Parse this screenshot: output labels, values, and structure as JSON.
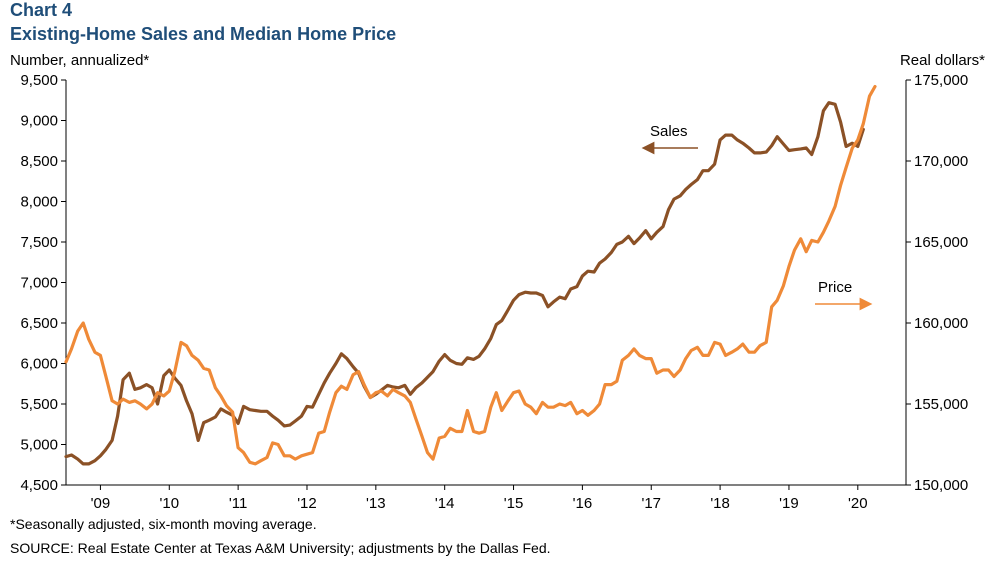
{
  "chart_data": {
    "type": "line",
    "title": "Chart 4",
    "subtitle": "Existing-Home Sales and Median Home Price",
    "ylabel_left": "Number, annualized*",
    "ylabel_right": "Real dollars*",
    "left_axis": {
      "min": 4500,
      "max": 9500,
      "step": 500,
      "ticks": [
        "4,500",
        "5,000",
        "5,500",
        "6,000",
        "6,500",
        "7,000",
        "7,500",
        "8,000",
        "8,500",
        "9,000",
        "9,500"
      ]
    },
    "right_axis": {
      "min": 150000,
      "max": 175000,
      "step": 5000,
      "ticks": [
        "150,000",
        "155,000",
        "160,000",
        "165,000",
        "170,000",
        "175,000"
      ]
    },
    "x_ticks": [
      "'09",
      "'10",
      "'11",
      "'12",
      "'13",
      "'14",
      "'15",
      "'16",
      "'17",
      "'18",
      "'19",
      "'20"
    ],
    "x_range": [
      2008.5,
      2020.7
    ],
    "grid": false,
    "series": [
      {
        "name": "Sales",
        "axis": "left",
        "color": "#8b5126",
        "points": [
          [
            2008.5,
            4850
          ],
          [
            2008.58,
            4870
          ],
          [
            2008.67,
            4820
          ],
          [
            2008.75,
            4760
          ],
          [
            2008.83,
            4760
          ],
          [
            2008.92,
            4800
          ],
          [
            2009.0,
            4860
          ],
          [
            2009.08,
            4940
          ],
          [
            2009.17,
            5050
          ],
          [
            2009.25,
            5350
          ],
          [
            2009.33,
            5800
          ],
          [
            2009.42,
            5880
          ],
          [
            2009.5,
            5680
          ],
          [
            2009.58,
            5700
          ],
          [
            2009.67,
            5740
          ],
          [
            2009.75,
            5700
          ],
          [
            2009.83,
            5500
          ],
          [
            2009.92,
            5850
          ],
          [
            2010.0,
            5920
          ],
          [
            2010.08,
            5820
          ],
          [
            2010.17,
            5730
          ],
          [
            2010.25,
            5540
          ],
          [
            2010.33,
            5380
          ],
          [
            2010.42,
            5050
          ],
          [
            2010.5,
            5270
          ],
          [
            2010.58,
            5300
          ],
          [
            2010.67,
            5340
          ],
          [
            2010.75,
            5440
          ],
          [
            2010.83,
            5400
          ],
          [
            2010.92,
            5360
          ],
          [
            2011.0,
            5260
          ],
          [
            2011.08,
            5470
          ],
          [
            2011.17,
            5430
          ],
          [
            2011.25,
            5420
          ],
          [
            2011.33,
            5410
          ],
          [
            2011.42,
            5410
          ],
          [
            2011.5,
            5350
          ],
          [
            2011.58,
            5300
          ],
          [
            2011.67,
            5230
          ],
          [
            2011.75,
            5240
          ],
          [
            2011.83,
            5290
          ],
          [
            2011.92,
            5350
          ],
          [
            2012.0,
            5470
          ],
          [
            2012.08,
            5460
          ],
          [
            2012.17,
            5620
          ],
          [
            2012.25,
            5760
          ],
          [
            2012.33,
            5880
          ],
          [
            2012.42,
            6000
          ],
          [
            2012.5,
            6120
          ],
          [
            2012.58,
            6060
          ],
          [
            2012.67,
            5960
          ],
          [
            2012.75,
            5880
          ],
          [
            2012.83,
            5720
          ],
          [
            2012.92,
            5580
          ],
          [
            2013.0,
            5620
          ],
          [
            2013.08,
            5670
          ],
          [
            2013.17,
            5730
          ],
          [
            2013.25,
            5710
          ],
          [
            2013.33,
            5700
          ],
          [
            2013.42,
            5730
          ],
          [
            2013.5,
            5620
          ],
          [
            2013.58,
            5700
          ],
          [
            2013.67,
            5760
          ],
          [
            2013.75,
            5830
          ],
          [
            2013.83,
            5900
          ],
          [
            2013.92,
            6030
          ],
          [
            2014.0,
            6110
          ],
          [
            2014.08,
            6040
          ],
          [
            2014.17,
            6000
          ],
          [
            2014.25,
            5990
          ],
          [
            2014.33,
            6070
          ],
          [
            2014.42,
            6050
          ],
          [
            2014.5,
            6090
          ],
          [
            2014.58,
            6180
          ],
          [
            2014.67,
            6310
          ],
          [
            2014.75,
            6480
          ],
          [
            2014.83,
            6530
          ],
          [
            2014.92,
            6660
          ],
          [
            2015.0,
            6780
          ],
          [
            2015.08,
            6850
          ],
          [
            2015.17,
            6880
          ],
          [
            2015.25,
            6870
          ],
          [
            2015.33,
            6870
          ],
          [
            2015.42,
            6840
          ],
          [
            2015.5,
            6700
          ],
          [
            2015.58,
            6760
          ],
          [
            2015.67,
            6820
          ],
          [
            2015.75,
            6800
          ],
          [
            2015.83,
            6920
          ],
          [
            2015.92,
            6950
          ],
          [
            2016.0,
            7080
          ],
          [
            2016.08,
            7140
          ],
          [
            2016.17,
            7130
          ],
          [
            2016.25,
            7240
          ],
          [
            2016.33,
            7290
          ],
          [
            2016.42,
            7370
          ],
          [
            2016.5,
            7470
          ],
          [
            2016.58,
            7500
          ],
          [
            2016.67,
            7570
          ],
          [
            2016.75,
            7480
          ],
          [
            2016.83,
            7550
          ],
          [
            2016.92,
            7640
          ],
          [
            2017.0,
            7540
          ],
          [
            2017.08,
            7620
          ],
          [
            2017.17,
            7690
          ],
          [
            2017.25,
            7900
          ],
          [
            2017.33,
            8030
          ],
          [
            2017.42,
            8070
          ],
          [
            2017.5,
            8150
          ],
          [
            2017.58,
            8210
          ],
          [
            2017.67,
            8270
          ],
          [
            2017.75,
            8380
          ],
          [
            2017.83,
            8380
          ],
          [
            2017.92,
            8460
          ],
          [
            2018.0,
            8760
          ],
          [
            2018.08,
            8820
          ],
          [
            2018.17,
            8820
          ],
          [
            2018.25,
            8760
          ],
          [
            2018.33,
            8720
          ],
          [
            2018.42,
            8660
          ],
          [
            2018.5,
            8600
          ],
          [
            2018.58,
            8600
          ],
          [
            2018.67,
            8610
          ],
          [
            2018.75,
            8690
          ],
          [
            2018.83,
            8800
          ],
          [
            2018.92,
            8710
          ],
          [
            2019.0,
            8630
          ],
          [
            2019.08,
            8640
          ],
          [
            2019.17,
            8650
          ],
          [
            2019.25,
            8660
          ],
          [
            2019.33,
            8580
          ],
          [
            2019.42,
            8800
          ],
          [
            2019.5,
            9120
          ],
          [
            2019.58,
            9220
          ],
          [
            2019.67,
            9200
          ],
          [
            2019.75,
            8980
          ],
          [
            2019.83,
            8680
          ],
          [
            2019.92,
            8720
          ],
          [
            2020.0,
            8680
          ],
          [
            2020.08,
            8890
          ]
        ]
      },
      {
        "name": "Price",
        "axis": "right",
        "color": "#ef8a38",
        "points": [
          [
            2008.5,
            157600
          ],
          [
            2008.58,
            158400
          ],
          [
            2008.67,
            159500
          ],
          [
            2008.75,
            160000
          ],
          [
            2008.83,
            159000
          ],
          [
            2008.92,
            158200
          ],
          [
            2009.0,
            158000
          ],
          [
            2009.08,
            156700
          ],
          [
            2009.17,
            155200
          ],
          [
            2009.25,
            155000
          ],
          [
            2009.33,
            155300
          ],
          [
            2009.42,
            155100
          ],
          [
            2009.5,
            155200
          ],
          [
            2009.58,
            155000
          ],
          [
            2009.67,
            154700
          ],
          [
            2009.75,
            155000
          ],
          [
            2009.83,
            155700
          ],
          [
            2009.92,
            155500
          ],
          [
            2010.0,
            155800
          ],
          [
            2010.08,
            157000
          ],
          [
            2010.17,
            158800
          ],
          [
            2010.25,
            158600
          ],
          [
            2010.33,
            158000
          ],
          [
            2010.42,
            157700
          ],
          [
            2010.5,
            157200
          ],
          [
            2010.58,
            157100
          ],
          [
            2010.67,
            156000
          ],
          [
            2010.75,
            155500
          ],
          [
            2010.83,
            154900
          ],
          [
            2010.92,
            154500
          ],
          [
            2011.0,
            152300
          ],
          [
            2011.08,
            152000
          ],
          [
            2011.17,
            151400
          ],
          [
            2011.25,
            151300
          ],
          [
            2011.33,
            151500
          ],
          [
            2011.42,
            151700
          ],
          [
            2011.5,
            152600
          ],
          [
            2011.58,
            152500
          ],
          [
            2011.67,
            151800
          ],
          [
            2011.75,
            151800
          ],
          [
            2011.83,
            151600
          ],
          [
            2011.92,
            151800
          ],
          [
            2012.0,
            151900
          ],
          [
            2012.08,
            152000
          ],
          [
            2012.17,
            153200
          ],
          [
            2012.25,
            153300
          ],
          [
            2012.33,
            154500
          ],
          [
            2012.42,
            155700
          ],
          [
            2012.5,
            156100
          ],
          [
            2012.58,
            155900
          ],
          [
            2012.67,
            156800
          ],
          [
            2012.75,
            157000
          ],
          [
            2012.83,
            156200
          ],
          [
            2012.92,
            155400
          ],
          [
            2013.0,
            155700
          ],
          [
            2013.08,
            155800
          ],
          [
            2013.17,
            155500
          ],
          [
            2013.25,
            155900
          ],
          [
            2013.33,
            155700
          ],
          [
            2013.42,
            155500
          ],
          [
            2013.5,
            155100
          ],
          [
            2013.58,
            154100
          ],
          [
            2013.67,
            153000
          ],
          [
            2013.75,
            152000
          ],
          [
            2013.83,
            151600
          ],
          [
            2013.92,
            152900
          ],
          [
            2014.0,
            153000
          ],
          [
            2014.08,
            153500
          ],
          [
            2014.17,
            153300
          ],
          [
            2014.25,
            153300
          ],
          [
            2014.33,
            154600
          ],
          [
            2014.42,
            153300
          ],
          [
            2014.5,
            153200
          ],
          [
            2014.58,
            153300
          ],
          [
            2014.67,
            154800
          ],
          [
            2014.75,
            155700
          ],
          [
            2014.83,
            154600
          ],
          [
            2014.92,
            155200
          ],
          [
            2015.0,
            155700
          ],
          [
            2015.08,
            155800
          ],
          [
            2015.17,
            155000
          ],
          [
            2015.25,
            154800
          ],
          [
            2015.33,
            154400
          ],
          [
            2015.42,
            155100
          ],
          [
            2015.5,
            154800
          ],
          [
            2015.58,
            154800
          ],
          [
            2015.67,
            155000
          ],
          [
            2015.75,
            154900
          ],
          [
            2015.83,
            155100
          ],
          [
            2015.92,
            154400
          ],
          [
            2016.0,
            154600
          ],
          [
            2016.08,
            154300
          ],
          [
            2016.17,
            154600
          ],
          [
            2016.25,
            155000
          ],
          [
            2016.33,
            156200
          ],
          [
            2016.42,
            156200
          ],
          [
            2016.5,
            156400
          ],
          [
            2016.58,
            157700
          ],
          [
            2016.67,
            158000
          ],
          [
            2016.75,
            158400
          ],
          [
            2016.83,
            158000
          ],
          [
            2016.92,
            157800
          ],
          [
            2017.0,
            157800
          ],
          [
            2017.08,
            156900
          ],
          [
            2017.17,
            157100
          ],
          [
            2017.25,
            157100
          ],
          [
            2017.33,
            156700
          ],
          [
            2017.42,
            157100
          ],
          [
            2017.5,
            157800
          ],
          [
            2017.58,
            158300
          ],
          [
            2017.67,
            158500
          ],
          [
            2017.75,
            158000
          ],
          [
            2017.83,
            158000
          ],
          [
            2017.92,
            158800
          ],
          [
            2018.0,
            158700
          ],
          [
            2018.08,
            158000
          ],
          [
            2018.17,
            158200
          ],
          [
            2018.25,
            158400
          ],
          [
            2018.33,
            158700
          ],
          [
            2018.42,
            158200
          ],
          [
            2018.5,
            158200
          ],
          [
            2018.58,
            158600
          ],
          [
            2018.67,
            158800
          ],
          [
            2018.75,
            161000
          ],
          [
            2018.83,
            161400
          ],
          [
            2018.92,
            162300
          ],
          [
            2019.0,
            163500
          ],
          [
            2019.08,
            164500
          ],
          [
            2019.17,
            165200
          ],
          [
            2019.25,
            164400
          ],
          [
            2019.33,
            165100
          ],
          [
            2019.42,
            165000
          ],
          [
            2019.5,
            165600
          ],
          [
            2019.58,
            166300
          ],
          [
            2019.67,
            167200
          ],
          [
            2019.75,
            168500
          ],
          [
            2019.83,
            169600
          ],
          [
            2019.92,
            170800
          ],
          [
            2020.0,
            171300
          ],
          [
            2020.08,
            172300
          ],
          [
            2020.17,
            174000
          ],
          [
            2020.25,
            174600
          ]
        ]
      }
    ],
    "annotations": [
      {
        "text": "Sales",
        "series": "Sales",
        "direction": "left"
      },
      {
        "text": "Price",
        "series": "Price",
        "direction": "right"
      }
    ]
  },
  "footnotes": [
    "*Seasonally adjusted, six-month moving average.",
    "SOURCE: Real Estate Center at Texas A&M University; adjustments by the Dallas Fed."
  ]
}
